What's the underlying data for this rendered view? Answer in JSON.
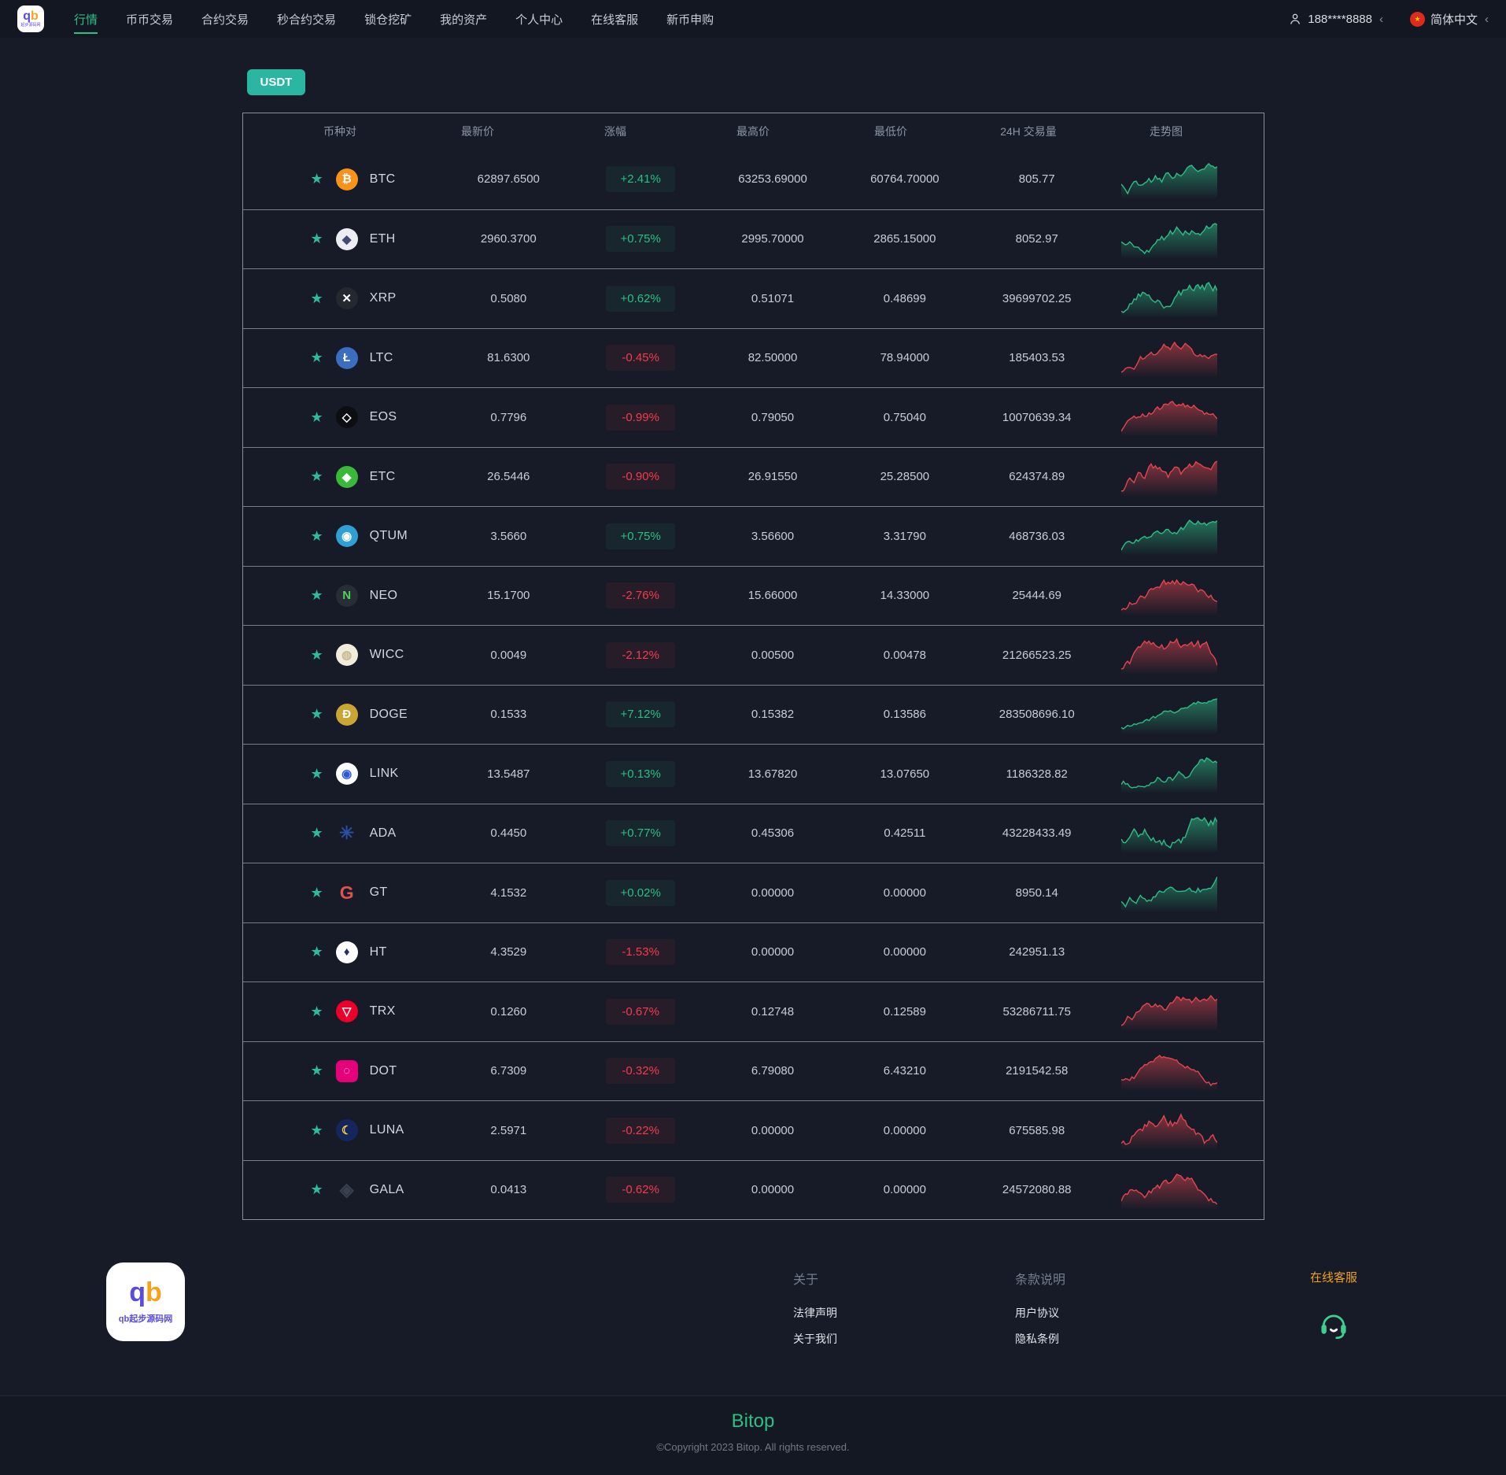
{
  "nav": {
    "logo_q": "q",
    "logo_b": "b",
    "menu": [
      {
        "label": "行情",
        "active": true
      },
      {
        "label": "币币交易",
        "active": false
      },
      {
        "label": "合约交易",
        "active": false
      },
      {
        "label": "秒合约交易",
        "active": false
      },
      {
        "label": "锁仓挖矿",
        "active": false
      },
      {
        "label": "我的资产",
        "active": false
      },
      {
        "label": "个人中心",
        "active": false
      },
      {
        "label": "在线客服",
        "active": false
      },
      {
        "label": "新币申购",
        "active": false
      }
    ],
    "user": {
      "phone": "188****8888",
      "chevron": "‹"
    },
    "language": {
      "label": "简体中文",
      "chevron": "‹"
    }
  },
  "filter": {
    "usdt_label": "USDT"
  },
  "market_table": {
    "headers": [
      "币种对",
      "最新价",
      "涨幅",
      "最高价",
      "最低价",
      "24H 交易量",
      "走势图"
    ],
    "rows": [
      {
        "symbol": "BTC",
        "price": "62897.6500",
        "change": "+2.41%",
        "direction": "up",
        "high": "63253.69000",
        "low": "60764.70000",
        "volume": "805.77",
        "chart": "up",
        "icon": {
          "glyph": "₿",
          "fg": "#ffffff",
          "bg": "#f7931a",
          "shape": "circle"
        }
      },
      {
        "symbol": "ETH",
        "price": "2960.3700",
        "change": "+0.75%",
        "direction": "up",
        "high": "2995.70000",
        "low": "2865.15000",
        "volume": "8052.97",
        "chart": "up",
        "icon": {
          "glyph": "◆",
          "fg": "#454a75",
          "bg": "#edeef4",
          "shape": "circle"
        }
      },
      {
        "symbol": "XRP",
        "price": "0.5080",
        "change": "+0.62%",
        "direction": "up",
        "high": "0.51071",
        "low": "0.48699",
        "volume": "39699702.25",
        "chart": "up",
        "icon": {
          "glyph": "✕",
          "fg": "#ffffff",
          "bg": "#23292f",
          "shape": "circle"
        }
      },
      {
        "symbol": "LTC",
        "price": "81.6300",
        "change": "-0.45%",
        "direction": "down",
        "high": "82.50000",
        "low": "78.94000",
        "volume": "185403.53",
        "chart": "down",
        "icon": {
          "glyph": "Ł",
          "fg": "#ffffff",
          "bg": "#3b6ec0",
          "shape": "circle"
        }
      },
      {
        "symbol": "EOS",
        "price": "0.7796",
        "change": "-0.99%",
        "direction": "down",
        "high": "0.79050",
        "low": "0.75040",
        "volume": "10070639.34",
        "chart": "down",
        "icon": {
          "glyph": "◇",
          "fg": "#ffffff",
          "bg": "#0d0e12",
          "shape": "circle"
        }
      },
      {
        "symbol": "ETC",
        "price": "26.5446",
        "change": "-0.90%",
        "direction": "down",
        "high": "26.91550",
        "low": "25.28500",
        "volume": "624374.89",
        "chart": "down",
        "icon": {
          "glyph": "◆",
          "fg": "#ffffff",
          "bg": "#3ab83a",
          "shape": "circle"
        }
      },
      {
        "symbol": "QTUM",
        "price": "3.5660",
        "change": "+0.75%",
        "direction": "up",
        "high": "3.56600",
        "low": "3.31790",
        "volume": "468736.03",
        "chart": "up",
        "icon": {
          "glyph": "◉",
          "fg": "#ffffff",
          "bg": "#2f9fd6",
          "shape": "circle"
        }
      },
      {
        "symbol": "NEO",
        "price": "15.1700",
        "change": "-2.76%",
        "direction": "down",
        "high": "15.66000",
        "low": "14.33000",
        "volume": "25444.69",
        "chart": "down",
        "icon": {
          "glyph": "N",
          "fg": "#52d25a",
          "bg": "#272e36",
          "shape": "circle"
        }
      },
      {
        "symbol": "WICC",
        "price": "0.0049",
        "change": "-2.12%",
        "direction": "down",
        "high": "0.00500",
        "low": "0.00478",
        "volume": "21266523.25",
        "chart": "down",
        "icon": {
          "glyph": "◍",
          "fg": "#c7b88e",
          "bg": "#f2ecdc",
          "shape": "circle"
        }
      },
      {
        "symbol": "DOGE",
        "price": "0.1533",
        "change": "+7.12%",
        "direction": "up",
        "high": "0.15382",
        "low": "0.13586",
        "volume": "283508696.10",
        "chart": "up",
        "icon": {
          "glyph": "Ð",
          "fg": "#ffffff",
          "bg": "#c9a633",
          "shape": "circle"
        }
      },
      {
        "symbol": "LINK",
        "price": "13.5487",
        "change": "+0.13%",
        "direction": "up",
        "high": "13.67820",
        "low": "13.07650",
        "volume": "1186328.82",
        "chart": "up",
        "icon": {
          "glyph": "◉",
          "fg": "#2a5ada",
          "bg": "#ffffff",
          "shape": "circle"
        }
      },
      {
        "symbol": "ADA",
        "price": "0.4450",
        "change": "+0.77%",
        "direction": "up",
        "high": "0.45306",
        "low": "0.42511",
        "volume": "43228433.49",
        "chart": "up",
        "icon": {
          "glyph": "✳",
          "fg": "#2b4fa5",
          "bg": "transparent",
          "shape": "none"
        }
      },
      {
        "symbol": "GT",
        "price": "4.1532",
        "change": "+0.02%",
        "direction": "up",
        "high": "0.00000",
        "low": "0.00000",
        "volume": "8950.14",
        "chart": "up",
        "icon": {
          "glyph": "G",
          "fg": "#e2514f",
          "bg": "transparent",
          "shape": "none"
        }
      },
      {
        "symbol": "HT",
        "price": "4.3529",
        "change": "-1.53%",
        "direction": "down",
        "high": "0.00000",
        "low": "0.00000",
        "volume": "242951.13",
        "chart": "none",
        "icon": {
          "glyph": "♦",
          "fg": "#223066",
          "bg": "#ffffff",
          "shape": "circle"
        }
      },
      {
        "symbol": "TRX",
        "price": "0.1260",
        "change": "-0.67%",
        "direction": "down",
        "high": "0.12748",
        "low": "0.12589",
        "volume": "53286711.75",
        "chart": "down",
        "icon": {
          "glyph": "▽",
          "fg": "#ffffff",
          "bg": "#eb0029",
          "shape": "circle"
        }
      },
      {
        "symbol": "DOT",
        "price": "6.7309",
        "change": "-0.32%",
        "direction": "down",
        "high": "6.79080",
        "low": "6.43210",
        "volume": "2191542.58",
        "chart": "down",
        "icon": {
          "glyph": "◌",
          "fg": "#ffffff",
          "bg": "#e6007a",
          "shape": "square"
        }
      },
      {
        "symbol": "LUNA",
        "price": "2.5971",
        "change": "-0.22%",
        "direction": "down",
        "high": "0.00000",
        "low": "0.00000",
        "volume": "675585.98",
        "chart": "down",
        "icon": {
          "glyph": "☾",
          "fg": "#ffd93d",
          "bg": "#15265c",
          "shape": "circle"
        }
      },
      {
        "symbol": "GALA",
        "price": "0.0413",
        "change": "-0.62%",
        "direction": "down",
        "high": "0.00000",
        "low": "0.00000",
        "volume": "24572080.88",
        "chart": "down",
        "icon": {
          "glyph": "◈",
          "fg": "#39404e",
          "bg": "transparent",
          "shape": "none"
        }
      }
    ]
  },
  "footer": {
    "logo_q": "q",
    "logo_b": "b",
    "logo_caption": "qb起步源码网",
    "about": {
      "title": "关于",
      "links": [
        "法律声明",
        "关于我们"
      ]
    },
    "terms": {
      "title": "条款说明",
      "links": [
        "用户协议",
        "隐私条例"
      ]
    },
    "support": {
      "label": "在线客服"
    },
    "brand": "Bitop",
    "copyright": "©Copyright 2023 Bitop. All rights reserved."
  },
  "colors": {
    "accent_teal": "#2ebd85",
    "up_green": "#2ebd85",
    "down_red": "#f23c4d",
    "support_orange": "#f0a11a",
    "usdt_button": "#2ab6a0"
  }
}
